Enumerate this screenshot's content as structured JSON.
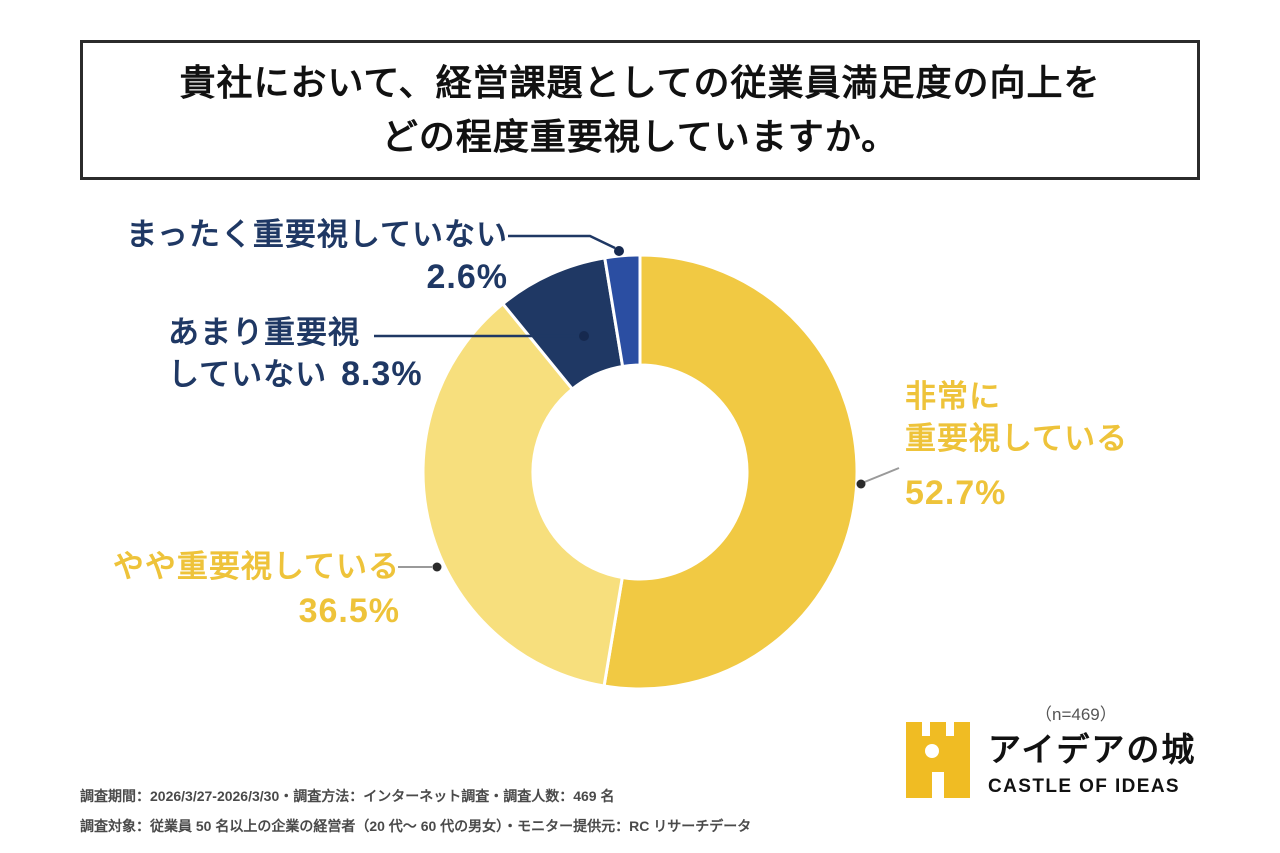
{
  "title": {
    "line1": "貴社において、経営課題としての従業員満足度の向上を",
    "line2": "どの程度重要視していますか。"
  },
  "chart_data": {
    "type": "pie",
    "subtype": "donut",
    "title": "貴社において、経営課題としての従業員満足度の向上をどの程度重要視していますか。",
    "sample_size": 469,
    "sample_note": "（n=469）",
    "start_angle_deg": 0,
    "direction": "clockwise",
    "segments": [
      {
        "label": "非常に重要視している",
        "value": 52.7,
        "display": "52.7%",
        "color": "#F1C943"
      },
      {
        "label": "やや重要視している",
        "value": 36.5,
        "display": "36.5%",
        "color": "#F7DF7D"
      },
      {
        "label": "あまり重要視していない",
        "value": 8.3,
        "display": "8.3%",
        "color": "#1F3864"
      },
      {
        "label": "まったく重要視していない",
        "value": 2.6,
        "display": "2.6%",
        "color": "#2B4EA2"
      }
    ],
    "legend_position": "callouts",
    "grid": false
  },
  "callouts": {
    "high": {
      "line1": "非常に",
      "line2": "重要視している",
      "pct": "52.7%"
    },
    "mid": {
      "line1": "やや重要視している",
      "pct": "36.5%"
    },
    "low": {
      "line1": "あまり重要視",
      "line2": "していない",
      "pct": "8.3%"
    },
    "none": {
      "line1": "まったく重要視していない",
      "pct": "2.6%"
    }
  },
  "footer": {
    "line1": "調査期間：2026/3/27-2026/3/30・調査方法：インターネット調査・調査人数：469 名",
    "line2": "調査対象：従業員 50 名以上の企業の経営者（20 代〜 60 代の男女）・モニター提供元：RC リサーチデータ"
  },
  "logo": {
    "name_jp": "アイデアの城",
    "name_en": "CASTLE OF IDEAS"
  }
}
